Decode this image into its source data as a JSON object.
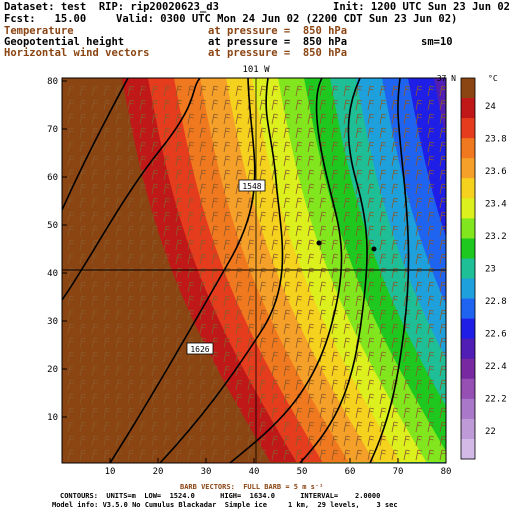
{
  "header": {
    "dataset": "Dataset: test  RIP: rip20020623_d3",
    "init": "Init: 1200 UTC Sun 23 Jun 02",
    "fcst": "Fcst:   15.00",
    "valid": "Valid: 0300 UTC Mon 24 Jun 02 (2200 CDT Sun 23 Jun 02)",
    "fields": [
      {
        "name": "Temperature",
        "level": "at pressure =  850 hPa",
        "color": "brown"
      },
      {
        "name": "Geopotential height",
        "level": "at pressure =  850 hPa",
        "color": "black"
      },
      {
        "name": "Horizontal wind vectors",
        "level": "at pressure =  850 hPa",
        "color": "brown"
      }
    ],
    "sm": "sm=10"
  },
  "map": {
    "top_lon_label": "101 W",
    "right_lat_label": "37 N",
    "x_ticks": [
      "10",
      "20",
      "30",
      "40",
      "50",
      "60",
      "70",
      "80"
    ],
    "y_ticks": [
      "10",
      "20",
      "30",
      "40",
      "50",
      "60",
      "70",
      "80"
    ],
    "contour_labels": [
      "1548",
      "1626"
    ]
  },
  "colorbar": {
    "unit": "°C",
    "labels": [
      "24",
      "23.8",
      "23.6",
      "23.4",
      "23.2",
      "23",
      "22.8",
      "22.6",
      "22.4",
      "22.2",
      "22"
    ],
    "colors": [
      "#8b4513",
      "#c01818",
      "#e63c1e",
      "#f0781e",
      "#f5a028",
      "#f5d21e",
      "#dcf01e",
      "#82e61e",
      "#1ec81e",
      "#1ebe96",
      "#1ea0dc",
      "#1e64f0",
      "#1e1ee6",
      "#501eb4",
      "#7828a0",
      "#9650b4",
      "#aa78c8",
      "#be9bd7",
      "#d2b9e6"
    ]
  },
  "footer": {
    "barb": "BARB VECTORS:  FULL BARB = 5 m s⁻¹",
    "contours": "CONTOURS:  UNITS=m  LOW=  1524.0      HIGH=  1634.0      INTERVAL=    2.0000",
    "model": "Model info: V3.5.0 No Cumulus Blackadar  Simple ice     1 km,  29 levels,    3 sec"
  }
}
